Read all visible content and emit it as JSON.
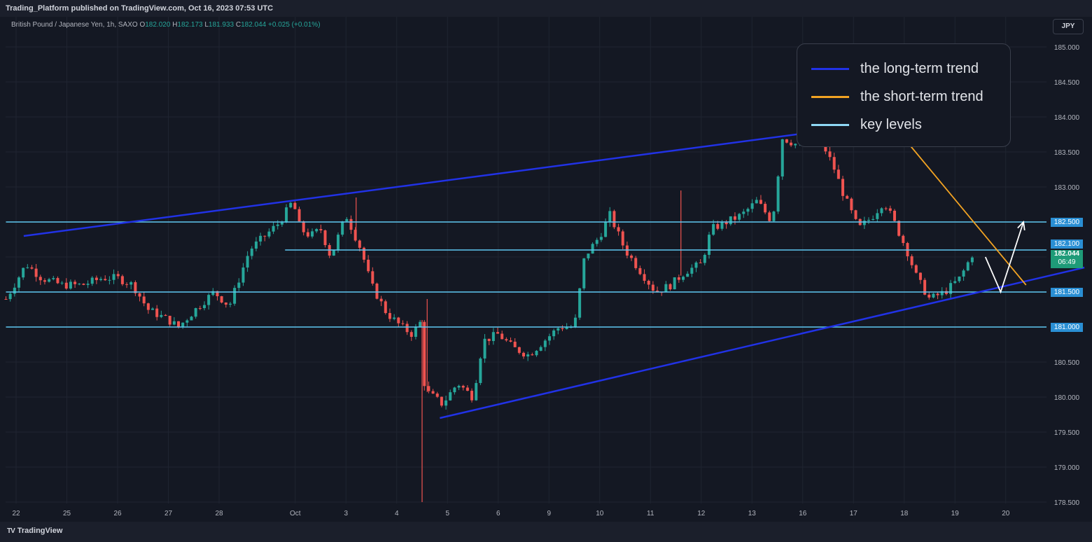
{
  "header": {
    "publisher_text": "Trading_Platform published on TradingView.com, Oct 16, 2023 07:53 UTC"
  },
  "symbol_info": {
    "name": "British Pound / Japanese Yen, 1h, SAXO",
    "open_label": "O",
    "open": "182.020",
    "high_label": "H",
    "high": "182.173",
    "low_label": "L",
    "low": "181.933",
    "close_label": "C",
    "close": "182.044",
    "change": "+0.025 (+0.01%)"
  },
  "currency_button": "JPY",
  "legend": [
    {
      "label": "the long-term trend",
      "color": "#2132e6"
    },
    {
      "label": "the short-term trend",
      "color": "#f2a323"
    },
    {
      "label": "key levels",
      "color": "#8fd8f5"
    }
  ],
  "price_tags": {
    "level_182_5": "182.500",
    "level_182_1": "182.100",
    "current_price": "182.044",
    "countdown": "06:49",
    "level_181_5": "181.500",
    "level_181_0": "181.000"
  },
  "footer": {
    "brand": "TradingView"
  },
  "colors": {
    "background": "#141823",
    "up_candle": "#26a69a",
    "down_candle": "#ef5350",
    "trend_line": "#2132e6",
    "short_trend": "#f2a323",
    "key_level": "#5ec8f2"
  },
  "chart_data": {
    "type": "candlestick",
    "y_axis_ticks": [
      "185.000",
      "184.500",
      "184.000",
      "183.500",
      "183.000",
      "182.500",
      "182.000",
      "181.500",
      "181.000",
      "180.500",
      "180.000",
      "179.500",
      "179.000",
      "178.500"
    ],
    "ylim": [
      178.5,
      185.25
    ],
    "x_axis_ticks": [
      {
        "label": "22",
        "day": 0
      },
      {
        "label": "25",
        "day": 1
      },
      {
        "label": "26",
        "day": 2
      },
      {
        "label": "27",
        "day": 3
      },
      {
        "label": "28",
        "day": 4
      },
      {
        "label": "Oct",
        "day": 5.5
      },
      {
        "label": "3",
        "day": 6.5
      },
      {
        "label": "4",
        "day": 7.5
      },
      {
        "label": "5",
        "day": 8.5
      },
      {
        "label": "6",
        "day": 9.5
      },
      {
        "label": "9",
        "day": 10.5
      },
      {
        "label": "10",
        "day": 11.5
      },
      {
        "label": "11",
        "day": 12.5
      },
      {
        "label": "12",
        "day": 13.5
      },
      {
        "label": "13",
        "day": 14.5
      },
      {
        "label": "16",
        "day": 15.5
      },
      {
        "label": "17",
        "day": 16.5
      },
      {
        "label": "18",
        "day": 17.5
      },
      {
        "label": "19",
        "day": 18.5
      },
      {
        "label": "20",
        "day": 19.5
      }
    ],
    "price_path": [
      [
        -0.2,
        181.4
      ],
      [
        0.2,
        181.9
      ],
      [
        0.5,
        181.7
      ],
      [
        0.9,
        181.6
      ],
      [
        1.3,
        181.6
      ],
      [
        1.7,
        181.7
      ],
      [
        2.0,
        181.7
      ],
      [
        2.3,
        181.6
      ],
      [
        2.6,
        181.25
      ],
      [
        3.0,
        181.1
      ],
      [
        3.2,
        181.0
      ],
      [
        3.6,
        181.3
      ],
      [
        3.9,
        181.5
      ],
      [
        4.2,
        181.3
      ],
      [
        4.4,
        181.7
      ],
      [
        4.6,
        182.1
      ],
      [
        4.9,
        182.3
      ],
      [
        5.2,
        182.5
      ],
      [
        5.45,
        182.8
      ],
      [
        5.6,
        182.4
      ],
      [
        5.8,
        182.3
      ],
      [
        6.0,
        182.4
      ],
      [
        6.2,
        182.0
      ],
      [
        6.5,
        182.6
      ],
      [
        6.8,
        182.1
      ],
      [
        7.0,
        181.6
      ],
      [
        7.3,
        181.2
      ],
      [
        7.6,
        181.0
      ],
      [
        7.8,
        180.9
      ],
      [
        8.0,
        181.1
      ],
      [
        8.05,
        180.1
      ],
      [
        8.4,
        179.9
      ],
      [
        8.7,
        180.2
      ],
      [
        9.0,
        180.0
      ],
      [
        9.2,
        180.8
      ],
      [
        9.5,
        180.9
      ],
      [
        9.8,
        180.7
      ],
      [
        10.1,
        180.6
      ],
      [
        10.4,
        180.8
      ],
      [
        10.7,
        181.0
      ],
      [
        11.0,
        181.0
      ],
      [
        11.2,
        182.0
      ],
      [
        11.5,
        182.3
      ],
      [
        11.7,
        182.6
      ],
      [
        12.0,
        182.1
      ],
      [
        12.3,
        181.8
      ],
      [
        12.6,
        181.5
      ],
      [
        12.9,
        181.6
      ],
      [
        13.2,
        181.8
      ],
      [
        13.5,
        181.9
      ],
      [
        13.7,
        182.4
      ],
      [
        14.0,
        182.5
      ],
      [
        14.3,
        182.6
      ],
      [
        14.6,
        182.8
      ],
      [
        14.9,
        182.5
      ],
      [
        15.1,
        183.7
      ],
      [
        15.4,
        183.6
      ],
      [
        15.7,
        183.8
      ],
      [
        15.9,
        183.6
      ],
      [
        16.1,
        183.3
      ],
      [
        16.3,
        182.9
      ],
      [
        16.6,
        182.4
      ],
      [
        16.9,
        182.6
      ],
      [
        17.1,
        182.8
      ],
      [
        17.3,
        182.5
      ],
      [
        17.55,
        182.1
      ],
      [
        17.75,
        181.7
      ],
      [
        18.0,
        181.4
      ],
      [
        18.3,
        181.5
      ],
      [
        18.6,
        181.7
      ],
      [
        18.85,
        182.05
      ]
    ],
    "extra_spikes": [
      [
        8.0,
        178.5
      ],
      [
        8.1,
        181.4
      ],
      [
        13.1,
        182.95
      ],
      [
        6.7,
        182.85
      ]
    ],
    "key_levels": [
      {
        "value": 182.5,
        "from": -0.2
      },
      {
        "value": 182.1,
        "from": 5.3
      },
      {
        "value": 181.5,
        "from": -0.2
      },
      {
        "value": 181.0,
        "from": -0.2
      }
    ],
    "long_term_trend": [
      {
        "from": [
          0.15,
          182.3
        ],
        "to": [
          18.0,
          184.0
        ]
      },
      {
        "from": [
          8.35,
          179.7
        ],
        "to": [
          21.05,
          181.85
        ]
      }
    ],
    "short_term_trend": {
      "from": [
        17.55,
        183.65
      ],
      "to": [
        19.9,
        181.6
      ]
    },
    "projection": [
      [
        19.1,
        182.0
      ],
      [
        19.4,
        181.5
      ],
      [
        19.85,
        182.5
      ]
    ]
  }
}
